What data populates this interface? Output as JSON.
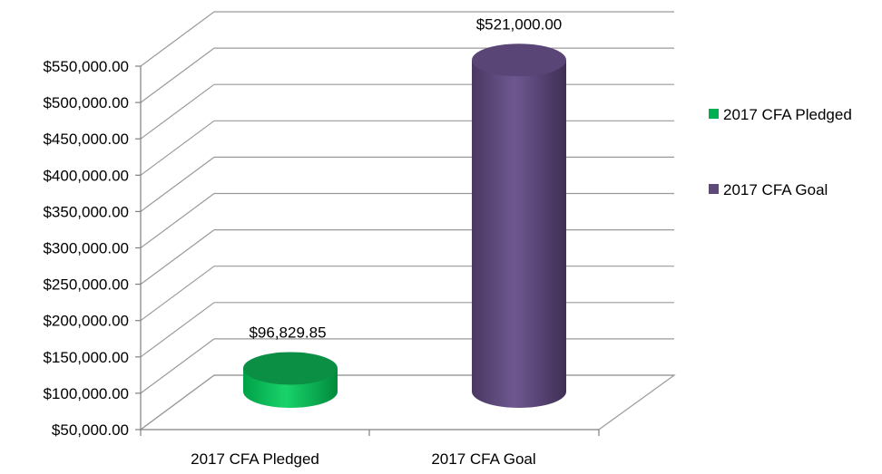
{
  "chart_data": {
    "type": "bar",
    "style": "3d-cylinder",
    "title": "",
    "xlabel": "",
    "ylabel": "",
    "ylim": [
      50000,
      550000
    ],
    "yticks": [
      50000,
      100000,
      150000,
      200000,
      250000,
      300000,
      350000,
      400000,
      450000,
      500000,
      550000
    ],
    "ytick_labels": [
      "$50,000.00",
      "$100,000.00",
      "$150,000.00",
      "$200,000.00",
      "$250,000.00",
      "$300,000.00",
      "$350,000.00",
      "$400,000.00",
      "$450,000.00",
      "$500,000.00",
      "$550,000.00"
    ],
    "grid": true,
    "legend_position": "right",
    "categories": [
      "2017 CFA Pledged",
      "2017 CFA Goal"
    ],
    "values": [
      96829.85,
      521000
    ],
    "data_labels": [
      "$96,829.85",
      "$521,000.00"
    ],
    "legend": [
      {
        "label": "2017 CFA Pledged",
        "color": "#00b050"
      },
      {
        "label": "2017 CFA Goal",
        "color": "#5f497a"
      }
    ],
    "colors": [
      "#00b050",
      "#5f497a"
    ]
  }
}
